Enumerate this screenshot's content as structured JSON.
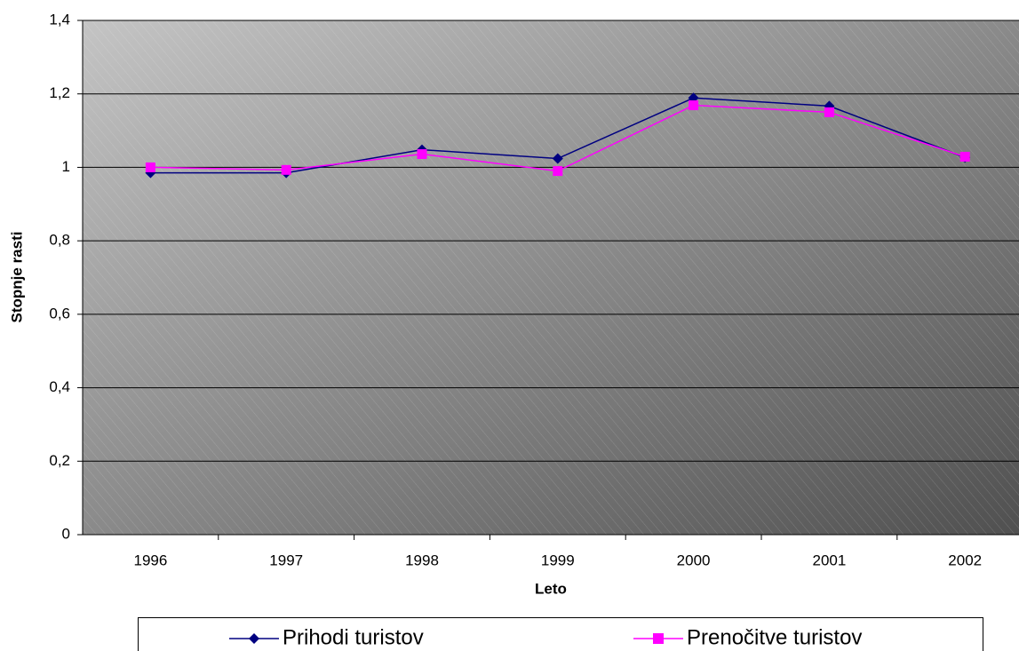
{
  "chart_data": {
    "type": "line",
    "x_label": "Leto",
    "y_label": "Stopnje rasti",
    "categories": [
      "1996",
      "1997",
      "1998",
      "1999",
      "2000",
      "2001",
      "2002"
    ],
    "series": [
      {
        "name": "Prihodi turistov",
        "color": "#000080",
        "marker": "diamond",
        "values": [
          0.985,
          0.985,
          1.048,
          1.024,
          1.189,
          1.167,
          1.027
        ]
      },
      {
        "name": "Prenočitve turistov",
        "color": "#ff00ff",
        "marker": "square",
        "values": [
          1.0,
          0.993,
          1.036,
          0.99,
          1.169,
          1.15,
          1.029
        ]
      }
    ],
    "ylim": [
      0,
      1.4
    ],
    "yticks": [
      0,
      {
        "value": 0.2,
        "label": "0,2"
      },
      {
        "value": 0.4,
        "label": "0,4"
      },
      {
        "value": 0.6,
        "label": "0,6"
      },
      {
        "value": 0.8,
        "label": "0,8"
      },
      1,
      {
        "value": 1.2,
        "label": "1,2"
      },
      {
        "value": 1.4,
        "label": "1,4"
      }
    ],
    "grid": true
  }
}
